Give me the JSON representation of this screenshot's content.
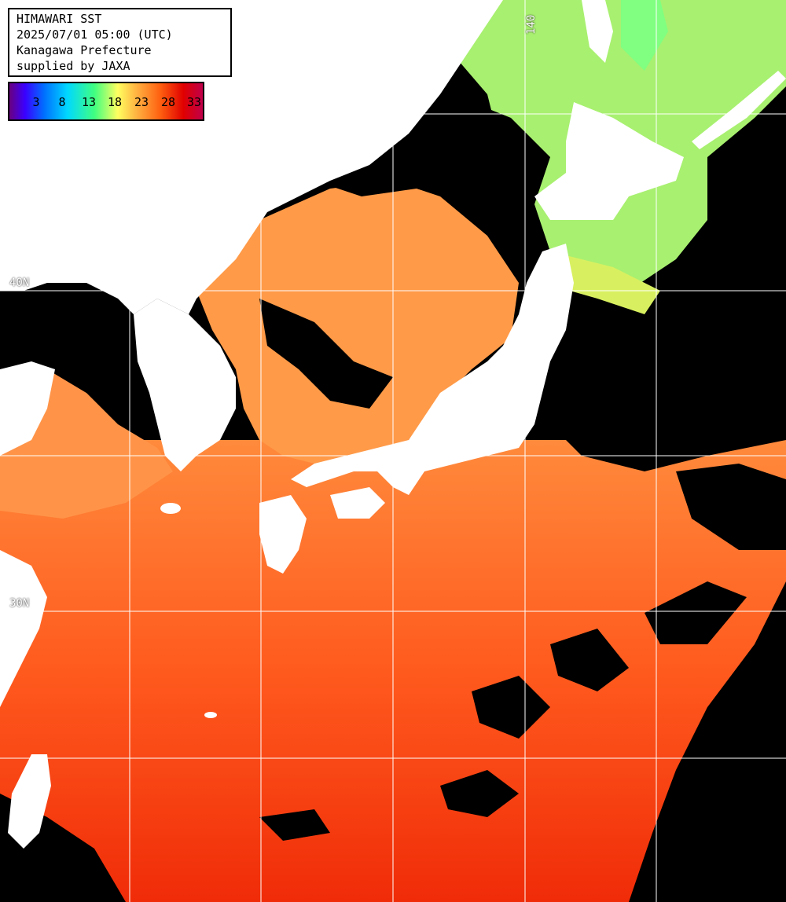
{
  "header": {
    "line1": "HIMAWARI SST",
    "line2": "2025/07/01 05:00 (UTC)",
    "line3": "Kanagawa Prefecture",
    "line4": "supplied by JAXA"
  },
  "scale": {
    "ticks": [
      "3",
      "8",
      "13",
      "18",
      "23",
      "28",
      "33"
    ],
    "colors": [
      "#6a0080",
      "#3a00ff",
      "#00d8ff",
      "#40ff80",
      "#ffff60",
      "#ffb040",
      "#ff6010",
      "#e00000",
      "#c0004a"
    ]
  },
  "grid": {
    "lat_label_40": "40N",
    "lat_label_30": "30N",
    "lon_label_140": "140"
  },
  "colors": {
    "land": "#ffffff",
    "cloud": "#000000",
    "sea_warm": "#ff4010",
    "sea_mild": "#ff8a3c",
    "sea_cool": "#a8f070",
    "gridline": "#ffffff"
  }
}
